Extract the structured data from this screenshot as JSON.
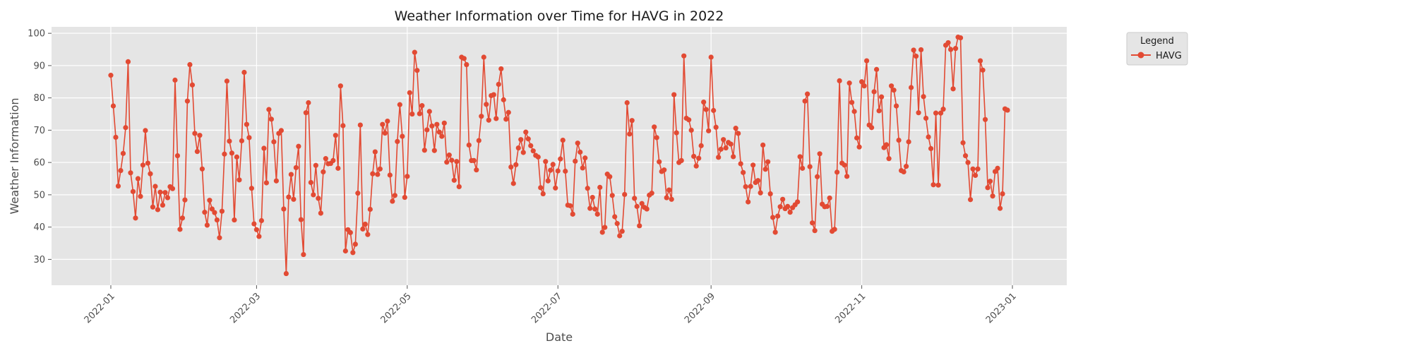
{
  "chart_data": {
    "type": "line",
    "title": "Weather Information over Time for HAVG in 2022",
    "xlabel": "Date",
    "ylabel": "Weather Information",
    "x_start": "2022-01-01",
    "x_end": "2022-12-31",
    "xlim": [
      "2021-12-08",
      "2023-01-23"
    ],
    "ylim": [
      22,
      102
    ],
    "x_ticks": [
      "2022-01",
      "2022-03",
      "2022-05",
      "2022-07",
      "2022-09",
      "2022-11",
      "2023-01"
    ],
    "y_ticks": [
      30,
      40,
      50,
      60,
      70,
      80,
      90,
      100
    ],
    "grid": true,
    "legend": {
      "title": "Legend",
      "placement": "outside-top-right"
    },
    "series": [
      {
        "name": "HAVG",
        "color": "#e24a33",
        "values": [
          87,
          77.5,
          67.8,
          52.7,
          57.5,
          62.8,
          70.8,
          91.2,
          56.8,
          51,
          42.8,
          55,
          49.5,
          59.2,
          69.9,
          59.8,
          56.5,
          46.2,
          52.6,
          45.4,
          50.8,
          46.8,
          50.7,
          49.1,
          52.5,
          51.9,
          85.5,
          62.1,
          39.3,
          42.8,
          48.4,
          79,
          90.3,
          84,
          69,
          63.4,
          68.4,
          58,
          44.6,
          40.6,
          48.3,
          45.6,
          44.5,
          42.2,
          36.7,
          44.9,
          62.6,
          85.2,
          66.6,
          62.9,
          42.2,
          61.7,
          54.6,
          66.7,
          87.9,
          71.8,
          67.7,
          52,
          41,
          39.2,
          37.1,
          42,
          64.4,
          53.7,
          76.4,
          73.4,
          66.4,
          54.3,
          69,
          69.9,
          45.6,
          25.6,
          49.3,
          56.3,
          48.6,
          58.4,
          65,
          42.3,
          31.5,
          75.4,
          78.5,
          53.8,
          50,
          59.1,
          48.9,
          44.3,
          57.1,
          61.2,
          59.6,
          59.7,
          60.6,
          68.4,
          58.2,
          83.7,
          71.4,
          32.6,
          39.2,
          38.3,
          32.1,
          34.7,
          50.5,
          71.6,
          39.4,
          40.9,
          37.7,
          45.5,
          56.5,
          63.3,
          56.3,
          58,
          71.8,
          69.1,
          72.8,
          56.1,
          48,
          49.8,
          66.5,
          77.9,
          68.1,
          49.2,
          55.7,
          81.6,
          75,
          94.1,
          88.5,
          75.1,
          77.6,
          63.8,
          70.1,
          75.8,
          71.3,
          63.7,
          71.8,
          69.4,
          68.1,
          72.2,
          60.1,
          62.3,
          60.7,
          54.5,
          60.3,
          52.5,
          92.6,
          92.2,
          90.3,
          65.4,
          60.6,
          60.6,
          57.7,
          66.8,
          74.3,
          92.6,
          78,
          73.1,
          80.7,
          81,
          73.6,
          84.2,
          89,
          79.4,
          73.4,
          75.5,
          58.6,
          53.5,
          59.3,
          64.5,
          67.1,
          63.1,
          69.4,
          67.3,
          65.2,
          63.6,
          62.2,
          61.7,
          52.2,
          50.3,
          60.3,
          54.3,
          57.6,
          59.4,
          52.1,
          57.4,
          61.1,
          66.9,
          57.3,
          46.8,
          46.6,
          44,
          60.4,
          66,
          63.2,
          58.3,
          61.4,
          52,
          45.8,
          49.2,
          45.6,
          44,
          52.3,
          38.4,
          39.9,
          56.4,
          55.6,
          49.8,
          43.2,
          41.1,
          37.3,
          38.7,
          50.1,
          78.5,
          68.8,
          73,
          48.9,
          46.4,
          40.4,
          47.3,
          46.1,
          45.6,
          49.9,
          50.5,
          71,
          67.7,
          60.2,
          57.2,
          57.7,
          49.1,
          51.5,
          48.6,
          81,
          69.2,
          60,
          60.6,
          93,
          73.7,
          73.2,
          70,
          61.9,
          58.9,
          61.3,
          65.2,
          78.7,
          76.4,
          69.8,
          92.6,
          76.1,
          70.9,
          61.6,
          64.1,
          67.1,
          64.5,
          66.2,
          65.7,
          61.8,
          70.6,
          69,
          59.6,
          56.9,
          52.5,
          47.8,
          52.6,
          59.2,
          53.8,
          54.4,
          50.6,
          65.4,
          57.9,
          60.2,
          50.3,
          43,
          38.4,
          43.4,
          46.3,
          48.6,
          45.7,
          46.4,
          44.6,
          46,
          46.9,
          47.8,
          61.8,
          58.2,
          79,
          81.2,
          58.7,
          41.3,
          38.9,
          55.6,
          62.7,
          47.1,
          46.3,
          46.4,
          49,
          38.7,
          39.3,
          57,
          85.3,
          59.8,
          59.2,
          55.7,
          84.6,
          78.6,
          75.8,
          67.6,
          64.8,
          85,
          83.7,
          91.5,
          71.6,
          70.8,
          81.9,
          88.8,
          76,
          80.3,
          64.6,
          65.5,
          61.2,
          83.7,
          82.4,
          77.5,
          66.9,
          57.5,
          57.1,
          58.8,
          66.4,
          83.2,
          94.8,
          92.9,
          75.4,
          94.9,
          80.4,
          73.7,
          67.9,
          64.3,
          53.1,
          75.3,
          53,
          75.3,
          76.5,
          96.3,
          97.1,
          95,
          82.8,
          95.3,
          98.8,
          98.6,
          66.1,
          62.1,
          60,
          48.5,
          58,
          56,
          58,
          91.5,
          88.6,
          73.3,
          52.2,
          54.2,
          49.6,
          57.2,
          58.2,
          45.8,
          50.3,
          76.6,
          76.2
        ]
      }
    ]
  }
}
